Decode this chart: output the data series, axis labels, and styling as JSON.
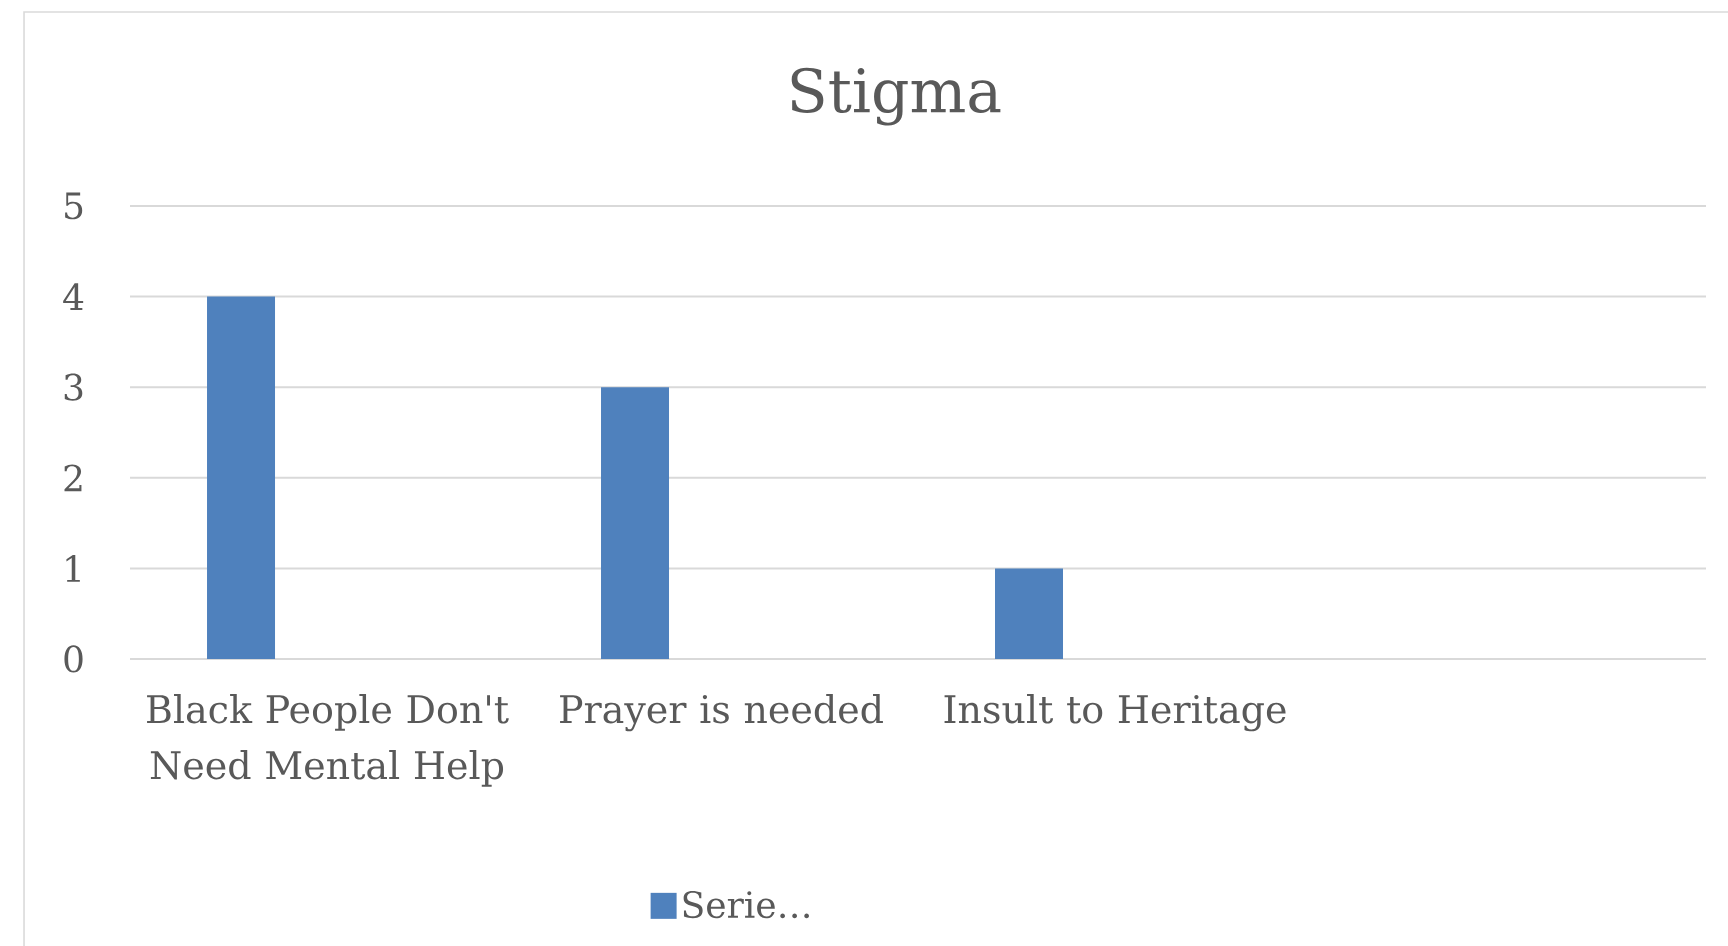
{
  "chart_data": {
    "type": "bar",
    "title": "Stigma",
    "categories": [
      "Black People Don't Need Mental Help",
      "Prayer is needed",
      "Insult to Heritage",
      null
    ],
    "series": [
      {
        "name": "Serie…",
        "color": "#4f81bd",
        "values": [
          4,
          3,
          1,
          null
        ]
      }
    ],
    "ylim": [
      0,
      5
    ],
    "yticks": [
      0,
      1,
      2,
      3,
      4,
      5
    ],
    "grid": "y",
    "legend": "bottom"
  }
}
